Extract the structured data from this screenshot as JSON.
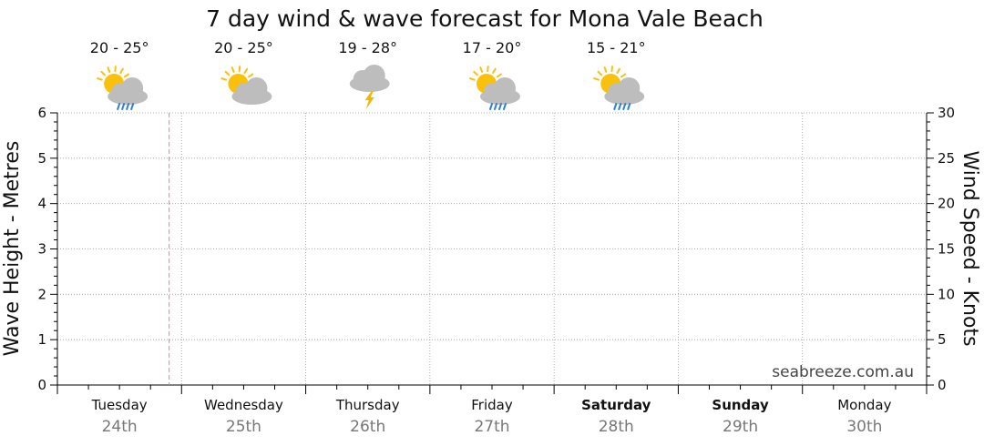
{
  "chart_data": {
    "type": "line",
    "title": "7 day wind & wave forecast for Mona Vale Beach",
    "ylabel_left": "Wave Height - Metres",
    "ylabel_right": "Wind Speed - Knots",
    "ylim_left": [
      0,
      6
    ],
    "ylim_right": [
      0,
      30
    ],
    "yticks_left": [
      "0",
      "1",
      "2",
      "3",
      "4",
      "5",
      "6"
    ],
    "yticks_right": [
      "0",
      "5",
      "10",
      "15",
      "20",
      "25",
      "30"
    ],
    "grid": true,
    "current_time_marker": {
      "day_index": 0,
      "day_fraction": 0.9
    },
    "days": [
      {
        "name": "Tuesday",
        "date": "24th",
        "temp": "20 - 25°",
        "icon": "sun-cloud-rain-icon",
        "bold": false
      },
      {
        "name": "Wednesday",
        "date": "25th",
        "temp": "20 - 25°",
        "icon": "sun-cloud-icon",
        "bold": false
      },
      {
        "name": "Thursday",
        "date": "26th",
        "temp": "19 - 28°",
        "icon": "storm-cloud-icon",
        "bold": false
      },
      {
        "name": "Friday",
        "date": "27th",
        "temp": "17 - 20°",
        "icon": "sun-cloud-rain-icon",
        "bold": false
      },
      {
        "name": "Saturday",
        "date": "28th",
        "temp": "15 - 21°",
        "icon": "sun-cloud-rain-icon",
        "bold": true
      },
      {
        "name": "Sunday",
        "date": "29th",
        "temp": "",
        "icon": "",
        "bold": true
      },
      {
        "name": "Monday",
        "date": "30th",
        "temp": "",
        "icon": "",
        "bold": false
      }
    ],
    "series": []
  },
  "credit": "seabreeze.com.au",
  "colors": {
    "sun": "#F9C00C",
    "cloud": "#BDBDBD",
    "rain": "#2F7FE0",
    "bolt": "#F2B705",
    "marker": "#F08080",
    "grid": "#999999"
  }
}
